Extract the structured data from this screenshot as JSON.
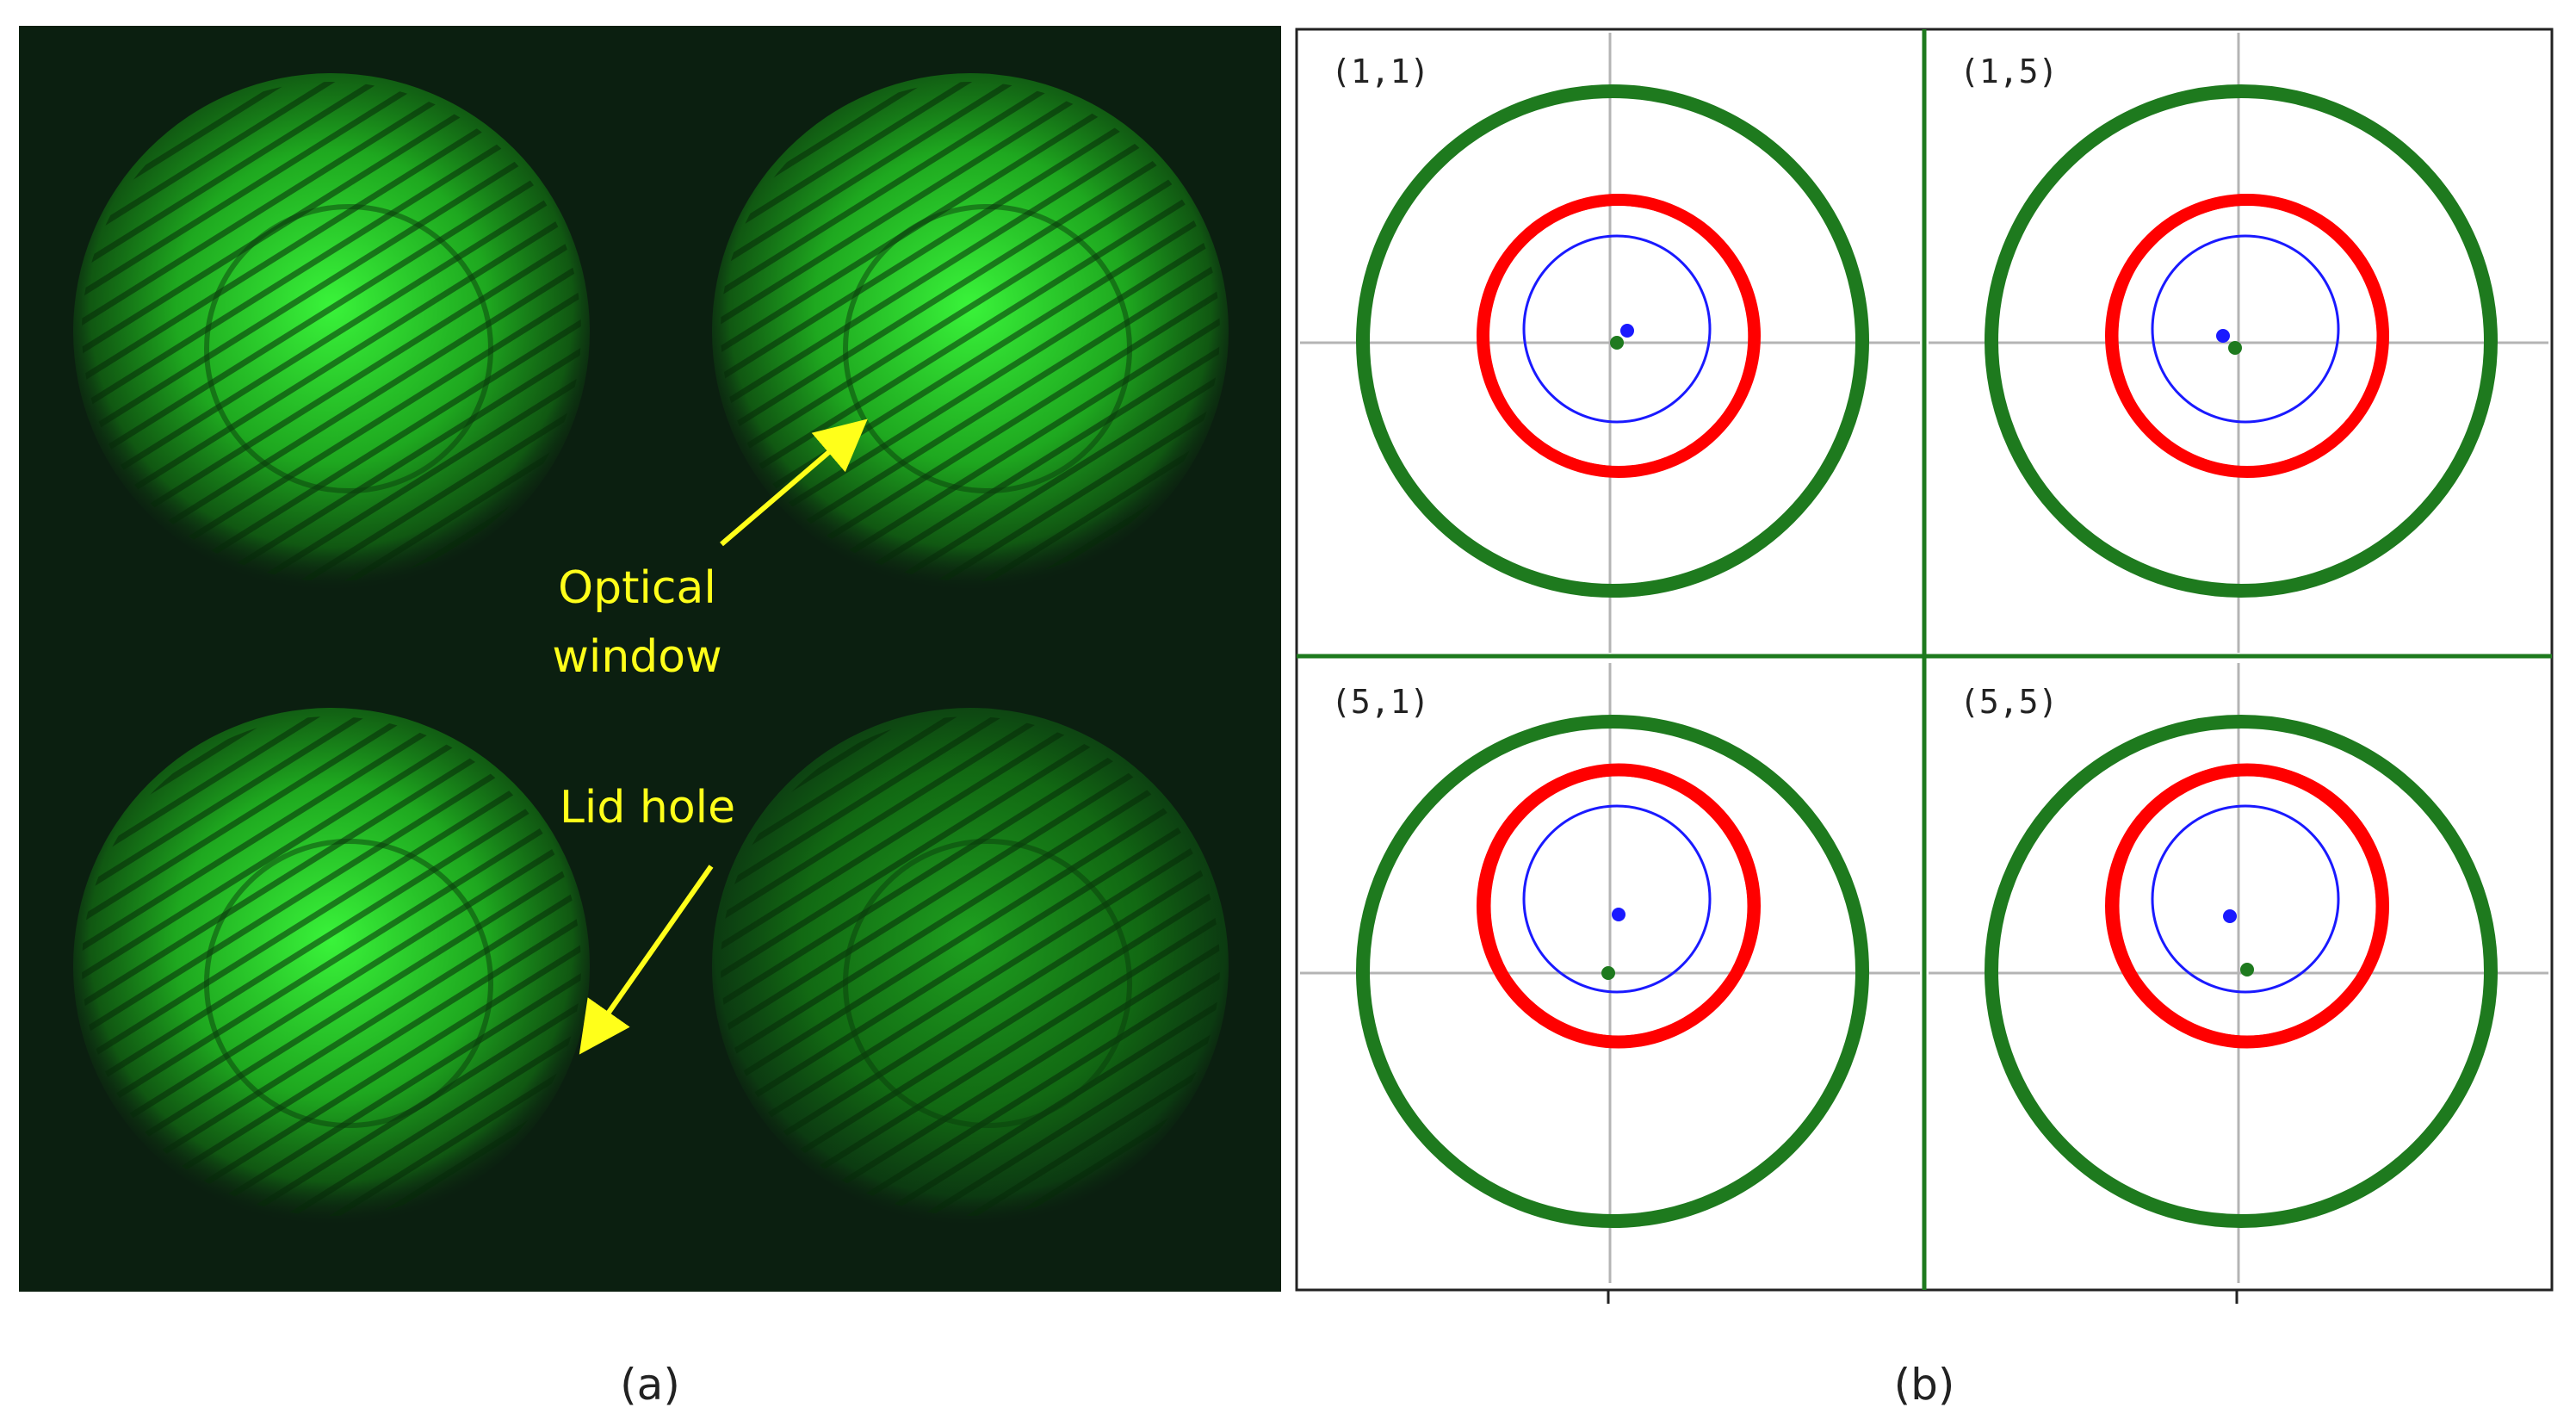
{
  "panel_a": {
    "caption": "(a)",
    "annotations": {
      "optical_window_line1": "Optical",
      "optical_window_line2": "window",
      "lid_hole": "Lid hole"
    },
    "colors": {
      "background": "#0b1f10",
      "glow": "#38ff38",
      "arrow": "#ffff1a"
    }
  },
  "panel_b": {
    "caption": "(b)",
    "quadrants": [
      {
        "label": "(1,1)"
      },
      {
        "label": "(1,5)"
      },
      {
        "label": "(5,1)"
      },
      {
        "label": "(5,5)"
      }
    ],
    "colors": {
      "outer_ring": "#1e7a1e",
      "red_ring": "#ff0000",
      "blue_ring": "#1a1aff",
      "grid": "#b4b4b4",
      "divider": "#1e7a1e"
    }
  }
}
